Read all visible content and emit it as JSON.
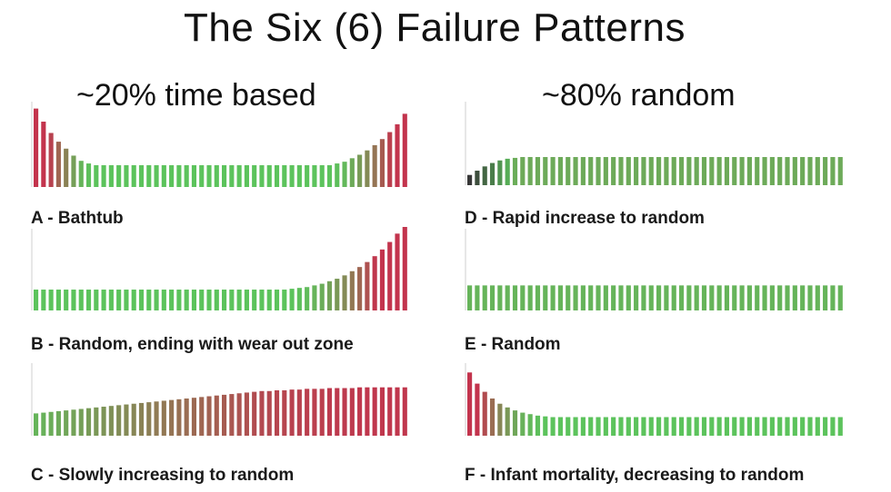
{
  "title": "The Six (6) Failure Patterns",
  "left_column": {
    "heading": "~20% time based"
  },
  "right_column": {
    "heading": "~80% random"
  },
  "colors": {
    "random": "#3fb83f",
    "wear": "#b8102e",
    "axis": "#cfcfcf"
  },
  "patterns": [
    {
      "id": "A",
      "caption": "A - Bathtub",
      "profile": [
        0.9,
        0.75,
        0.62,
        0.52,
        0.44,
        0.36,
        0.3,
        0.27,
        0.25,
        0.25,
        0.25,
        0.25,
        0.25,
        0.25,
        0.25,
        0.25,
        0.25,
        0.25,
        0.25,
        0.25,
        0.25,
        0.25,
        0.25,
        0.25,
        0.25,
        0.25,
        0.25,
        0.25,
        0.25,
        0.25,
        0.25,
        0.25,
        0.25,
        0.25,
        0.25,
        0.25,
        0.25,
        0.25,
        0.25,
        0.25,
        0.27,
        0.29,
        0.33,
        0.37,
        0.42,
        0.48,
        0.55,
        0.63,
        0.72,
        0.84
      ]
    },
    {
      "id": "B",
      "caption": "B - Random, ending with wear out zone",
      "profile": [
        0.25,
        0.25,
        0.25,
        0.25,
        0.25,
        0.25,
        0.25,
        0.25,
        0.25,
        0.25,
        0.25,
        0.25,
        0.25,
        0.25,
        0.25,
        0.25,
        0.25,
        0.25,
        0.25,
        0.25,
        0.25,
        0.25,
        0.25,
        0.25,
        0.25,
        0.25,
        0.25,
        0.25,
        0.25,
        0.25,
        0.25,
        0.25,
        0.25,
        0.25,
        0.26,
        0.27,
        0.28,
        0.3,
        0.32,
        0.35,
        0.38,
        0.42,
        0.47,
        0.52,
        0.58,
        0.65,
        0.73,
        0.82,
        0.92,
        1.0
      ]
    },
    {
      "id": "C",
      "caption": "C - Slowly increasing to random",
      "profile": [
        0.3,
        0.31,
        0.32,
        0.33,
        0.34,
        0.35,
        0.36,
        0.37,
        0.38,
        0.39,
        0.4,
        0.41,
        0.42,
        0.43,
        0.44,
        0.45,
        0.46,
        0.47,
        0.48,
        0.49,
        0.5,
        0.51,
        0.52,
        0.53,
        0.54,
        0.55,
        0.56,
        0.57,
        0.58,
        0.59,
        0.6,
        0.6,
        0.61,
        0.61,
        0.62,
        0.62,
        0.63,
        0.63,
        0.63,
        0.64,
        0.64,
        0.64,
        0.64,
        0.65,
        0.65,
        0.65,
        0.65,
        0.65,
        0.65,
        0.65
      ]
    },
    {
      "id": "D",
      "caption": "D - Rapid increase to random",
      "profile": [
        0.12,
        0.17,
        0.22,
        0.26,
        0.29,
        0.31,
        0.32,
        0.33,
        0.33,
        0.33,
        0.33,
        0.33,
        0.33,
        0.33,
        0.33,
        0.33,
        0.33,
        0.33,
        0.33,
        0.33,
        0.33,
        0.33,
        0.33,
        0.33,
        0.33,
        0.33,
        0.33,
        0.33,
        0.33,
        0.33,
        0.33,
        0.33,
        0.33,
        0.33,
        0.33,
        0.33,
        0.33,
        0.33,
        0.33,
        0.33,
        0.33,
        0.33,
        0.33,
        0.33,
        0.33,
        0.33,
        0.33,
        0.33,
        0.33,
        0.33
      ]
    },
    {
      "id": "E",
      "caption": "E - Random",
      "profile": [
        0.3,
        0.3,
        0.3,
        0.3,
        0.3,
        0.3,
        0.3,
        0.3,
        0.3,
        0.3,
        0.3,
        0.3,
        0.3,
        0.3,
        0.3,
        0.3,
        0.3,
        0.3,
        0.3,
        0.3,
        0.3,
        0.3,
        0.3,
        0.3,
        0.3,
        0.3,
        0.3,
        0.3,
        0.3,
        0.3,
        0.3,
        0.3,
        0.3,
        0.3,
        0.3,
        0.3,
        0.3,
        0.3,
        0.3,
        0.3,
        0.3,
        0.3,
        0.3,
        0.3,
        0.3,
        0.3,
        0.3,
        0.3,
        0.3,
        0.3
      ]
    },
    {
      "id": "F",
      "caption": "F - Infant mortality, decreasing to random",
      "profile": [
        0.85,
        0.7,
        0.59,
        0.5,
        0.43,
        0.38,
        0.34,
        0.31,
        0.29,
        0.27,
        0.26,
        0.25,
        0.25,
        0.25,
        0.25,
        0.25,
        0.25,
        0.25,
        0.25,
        0.25,
        0.25,
        0.25,
        0.25,
        0.25,
        0.25,
        0.25,
        0.25,
        0.25,
        0.25,
        0.25,
        0.25,
        0.25,
        0.25,
        0.25,
        0.25,
        0.25,
        0.25,
        0.25,
        0.25,
        0.25,
        0.25,
        0.25,
        0.25,
        0.25,
        0.25,
        0.25,
        0.25,
        0.25,
        0.25,
        0.25
      ]
    }
  ]
}
